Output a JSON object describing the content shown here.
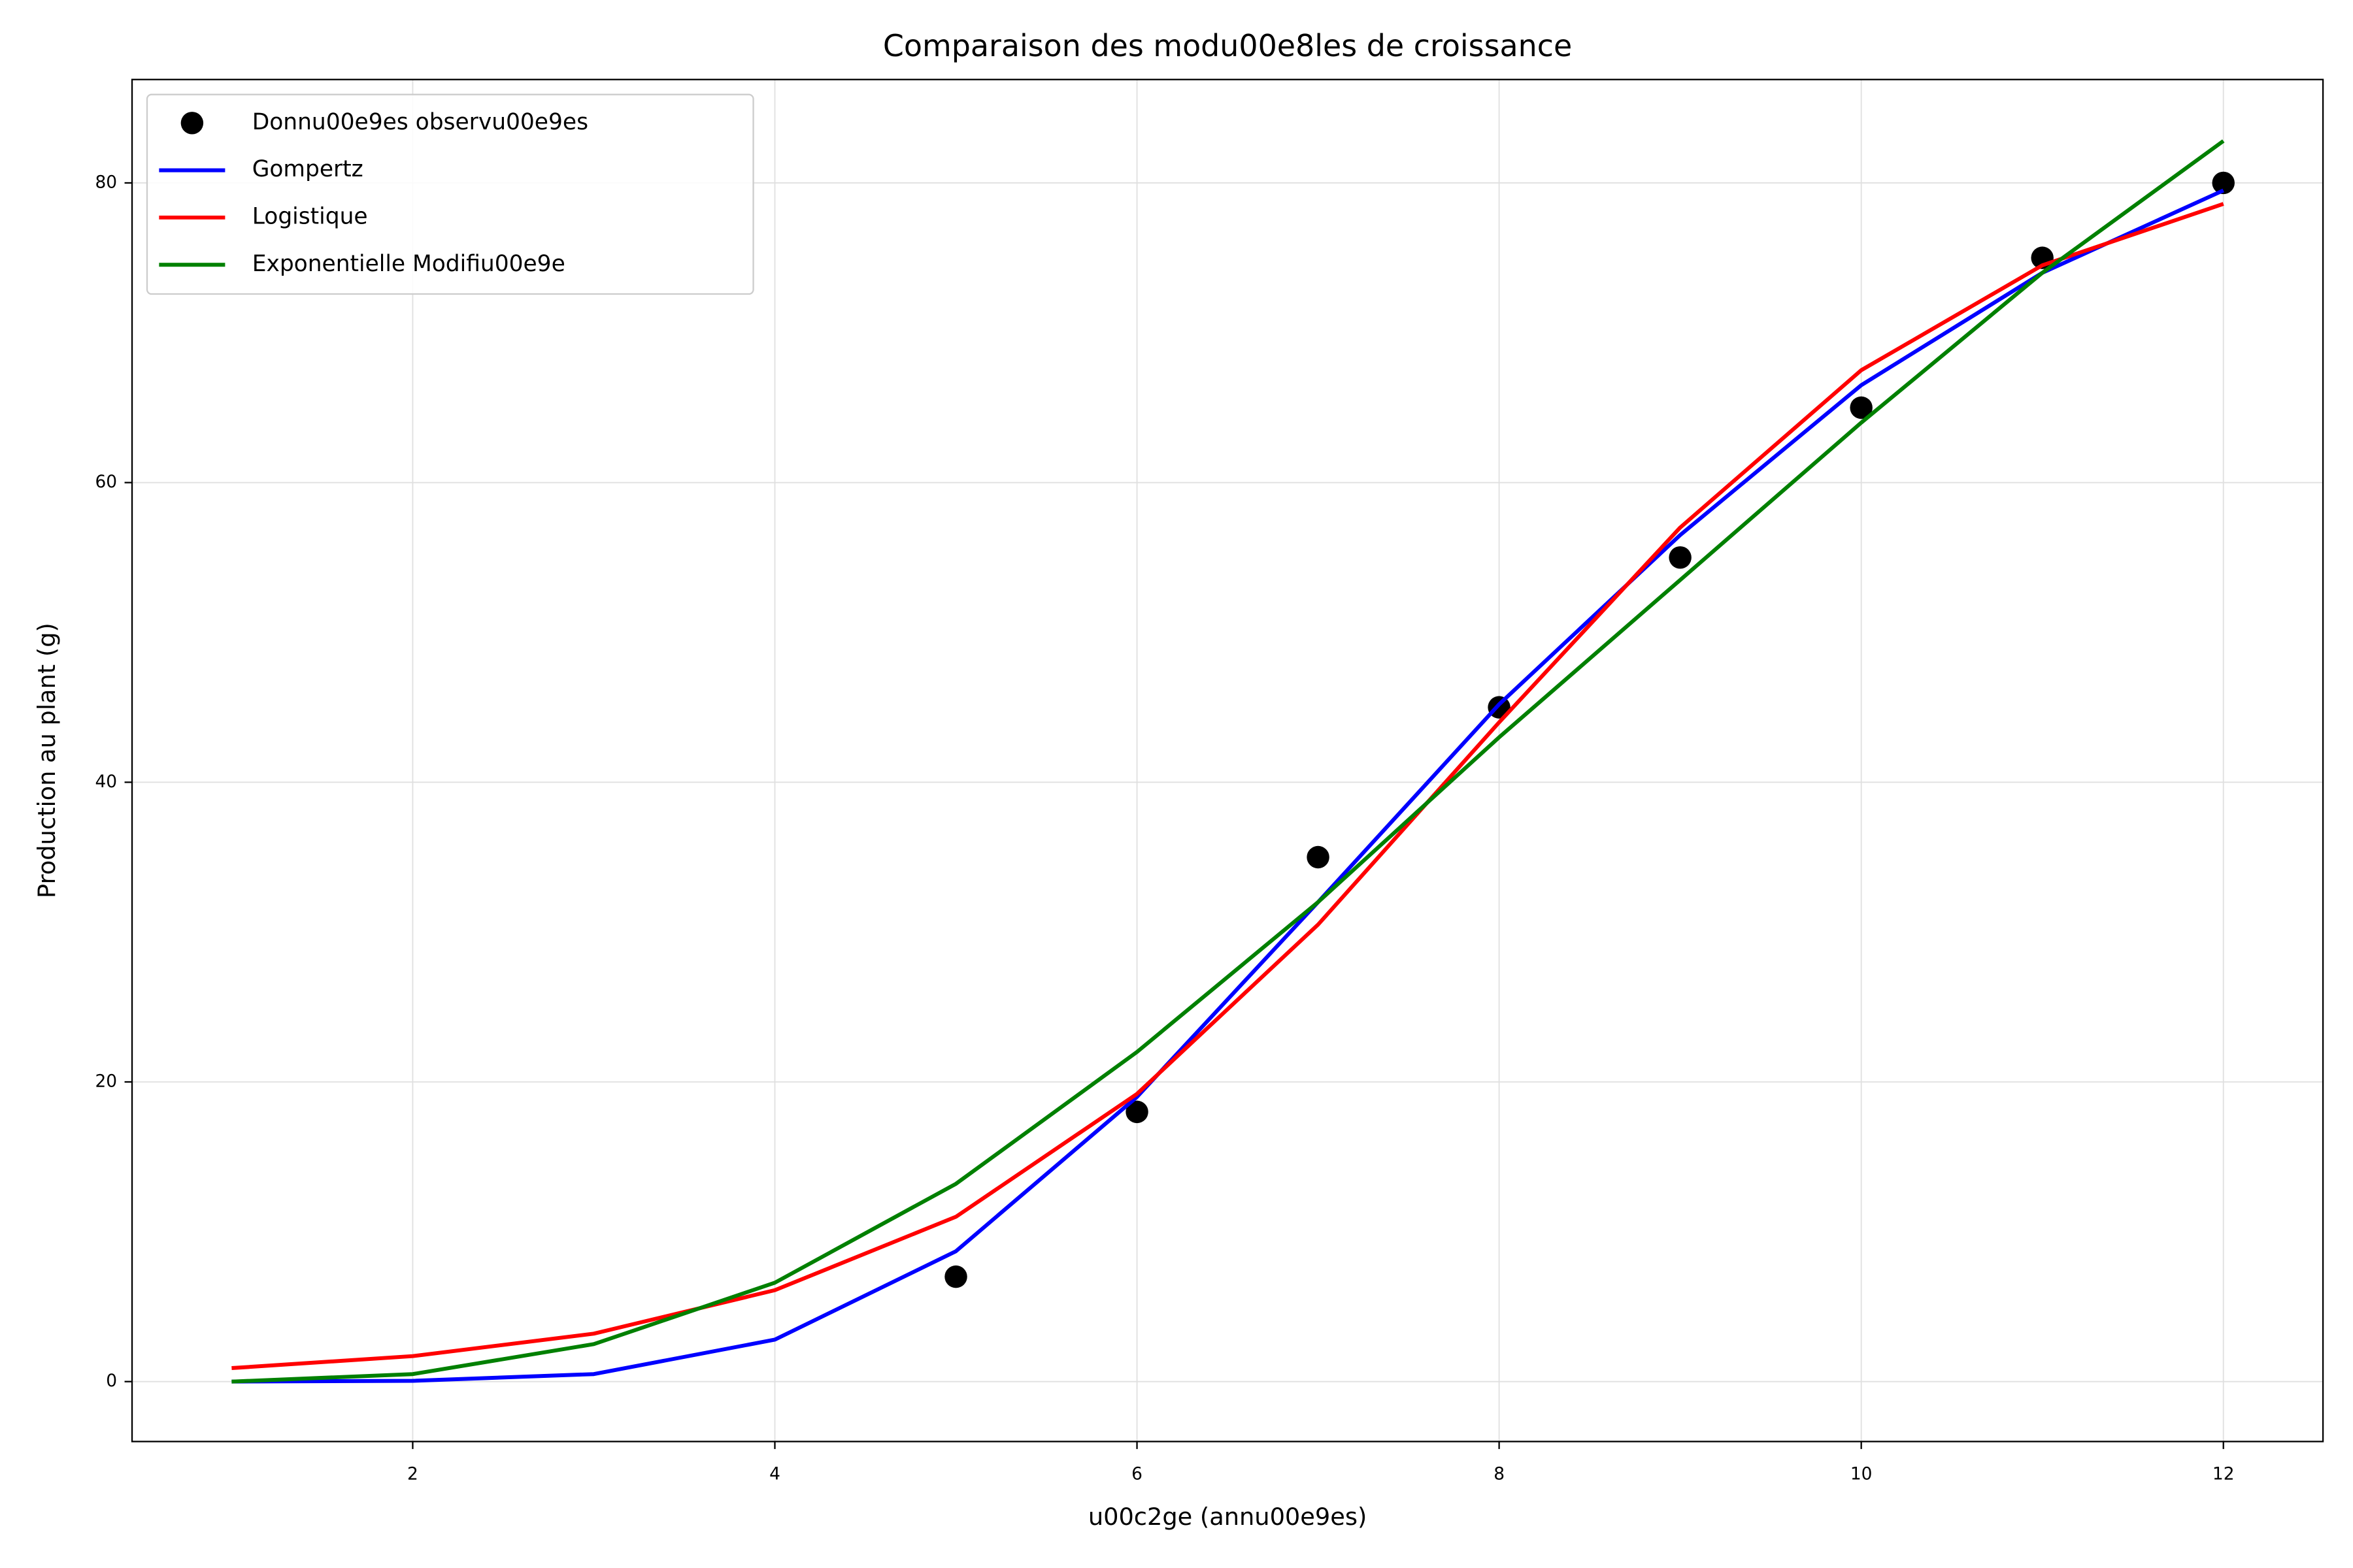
{
  "chart_data": {
    "type": "line",
    "title": "Comparaison des modu00e8les de croissance",
    "xlabel": "u00c2ge (annu00e9es)",
    "ylabel": "Production au plant (g)",
    "xlim": [
      0.45,
      12.55
    ],
    "xticks": [
      2,
      4,
      6,
      8,
      10,
      12
    ],
    "ylim": [
      -4,
      86.9
    ],
    "yticks": [
      0,
      20,
      40,
      60,
      80
    ],
    "grid": true,
    "legend": "upper left",
    "series": [
      {
        "name": "Donnu00e9es observu00e9es",
        "color": "#000000",
        "style": "scatter",
        "x": [
          5,
          6,
          7,
          8,
          9,
          10,
          11,
          12
        ],
        "values": [
          7,
          18,
          35,
          45,
          55,
          65,
          75,
          80
        ]
      },
      {
        "name": "Gompertz",
        "color": "#0000ff",
        "style": "line",
        "x": [
          1,
          2,
          3,
          4,
          5,
          6,
          7,
          8,
          9,
          10,
          11,
          12
        ],
        "values": [
          0,
          0.05,
          0.5,
          2.8,
          8.7,
          19,
          32,
          45.2,
          56.5,
          66.5,
          74,
          79.5
        ]
      },
      {
        "name": "Logistique",
        "color": "#ff0000",
        "style": "line",
        "x": [
          1,
          2,
          3,
          4,
          5,
          6,
          7,
          8,
          9,
          10,
          11,
          12
        ],
        "values": [
          0.9,
          1.7,
          3.2,
          6.1,
          11,
          19.2,
          30.5,
          44,
          57,
          67.5,
          74.5,
          78.6
        ]
      },
      {
        "name": "Exponentielle Modifiu00e9e",
        "color": "#008000",
        "style": "line",
        "x": [
          1,
          2,
          3,
          4,
          5,
          6,
          7,
          8,
          9,
          10,
          11,
          12
        ],
        "values": [
          0,
          0.5,
          2.5,
          6.6,
          13.2,
          22,
          32,
          43,
          53.5,
          64,
          74,
          82.8
        ]
      }
    ]
  }
}
